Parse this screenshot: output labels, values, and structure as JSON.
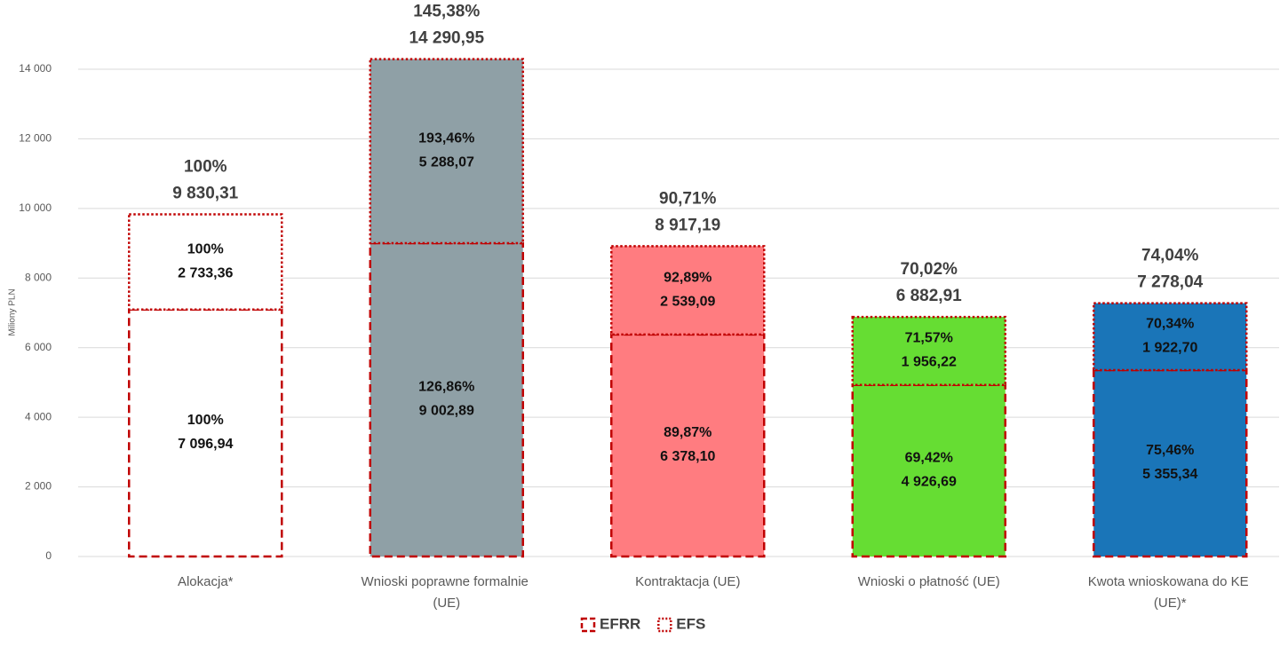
{
  "chart_data": {
    "type": "stacked_bar",
    "y_label": "Miliony PLN",
    "categories": [
      "Alokacja*",
      "Wnioski poprawne formalnie (UE)",
      "Kontraktacja (UE)",
      "Wnioski o płatność (UE)",
      "Kwota wnioskowana do KE (UE)*"
    ],
    "category_colors": [
      "#ffffff",
      "#8fa0a6",
      "#ff7c80",
      "#66dd33",
      "#1a75b8"
    ],
    "series": [
      {
        "name": "EFRR",
        "color": "#c00000",
        "border": "dashed",
        "values": [
          7096.94,
          9002.89,
          6378.1,
          4926.69,
          5355.34
        ],
        "value_labels": [
          "7 096,94",
          "9 002,89",
          "6 378,10",
          "4 926,69",
          "5 355,34"
        ],
        "percent_labels": [
          "100%",
          "126,86%",
          "89,87%",
          "69,42%",
          "75,46%"
        ]
      },
      {
        "name": "EFS",
        "color": "#c00000",
        "border": "dotted",
        "values": [
          2733.36,
          5288.07,
          2539.09,
          1956.22,
          1922.7
        ],
        "value_labels": [
          "2 733,36",
          "5 288,07",
          "2 539,09",
          "1 956,22",
          "1 922,70"
        ],
        "percent_labels": [
          "100%",
          "193,46%",
          "92,89%",
          "71,57%",
          "70,34%"
        ]
      }
    ],
    "totals": [
      9830.31,
      14290.95,
      8917.19,
      6882.91,
      7278.04
    ],
    "total_labels": [
      "9 830,31",
      "14 290,95",
      "8 917,19",
      "6 882,91",
      "7 278,04"
    ],
    "total_percent_labels": [
      "100%",
      "145,38%",
      "90,71%",
      "70,02%",
      "74,04%"
    ],
    "ylim": [
      0,
      14000
    ],
    "yticks": [
      0,
      {
        "value": 2000,
        "label": "2 000"
      },
      {
        "value": 4000,
        "label": "4 000"
      },
      {
        "value": 6000,
        "label": "6 000"
      },
      {
        "value": 8000,
        "label": "8 000"
      },
      {
        "value": 10000,
        "label": "10 000"
      },
      {
        "value": 12000,
        "label": "12 000"
      },
      {
        "value": 14000,
        "label": "14 000"
      }
    ],
    "grid": true,
    "legend": "bottom"
  }
}
